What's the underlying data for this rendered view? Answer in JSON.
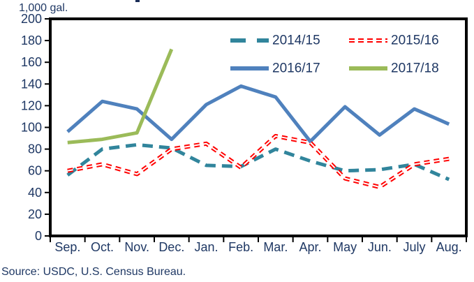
{
  "unit_label": "1,000 gal.",
  "source": "Source: USDC, U.S. Census Bureau.",
  "colors": {
    "axis_text": "#1f3864",
    "frame": "#000000",
    "background": "#ffffff"
  },
  "chart_data": {
    "type": "line",
    "title": "",
    "ylabel": "1,000 gal.",
    "xlabel": "",
    "ylim": [
      0,
      200
    ],
    "ytick_step": 20,
    "grid": false,
    "legend_position": "inside-top-center, 2 columns",
    "categories": [
      "Sep.",
      "Oct.",
      "Nov.",
      "Dec.",
      "Jan.",
      "Feb.",
      "Mar.",
      "Apr.",
      "May",
      "Jun.",
      "July",
      "Aug."
    ],
    "series": [
      {
        "name": "2014/15",
        "color": "#31859c",
        "line_style": "dashed",
        "values": [
          56,
          80,
          84,
          81,
          65,
          64,
          80,
          69,
          60,
          61,
          66,
          52
        ]
      },
      {
        "name": "2015/16",
        "color": "#ff0000",
        "line_style": "double-dashed",
        "values": [
          60,
          66,
          57,
          80,
          85,
          63,
          92,
          86,
          53,
          45,
          66,
          71
        ]
      },
      {
        "name": "2016/17",
        "color": "#4f81bd",
        "line_style": "solid",
        "values": [
          96,
          124,
          117,
          89,
          121,
          138,
          128,
          87,
          119,
          93,
          117,
          103
        ]
      },
      {
        "name": "2017/18",
        "color": "#9bbb59",
        "line_style": "solid",
        "values": [
          86,
          89,
          95,
          172
        ]
      }
    ]
  }
}
